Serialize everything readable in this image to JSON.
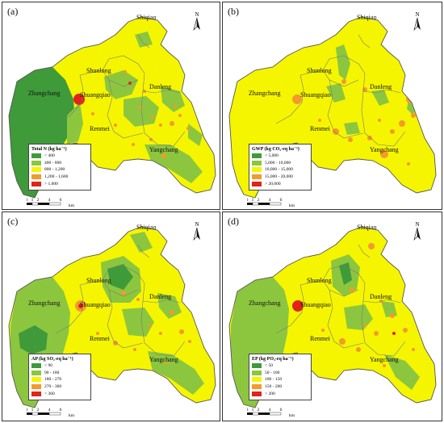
{
  "colors": {
    "darkgreen": "#3f9a3a",
    "lightgreen": "#8cc63f",
    "yellow": "#f5f500",
    "orange": "#f39a2c",
    "red": "#e2231a"
  },
  "places": [
    "Shiqiao",
    "Shunlong",
    "Zhangchang",
    "Shuangqiao",
    "Danleng",
    "Renmei",
    "Yangchang"
  ],
  "north_label": "N",
  "scale": {
    "ticks": [
      "0",
      "1",
      "2",
      "4",
      "6"
    ],
    "unit": "km"
  },
  "panels": [
    {
      "label": "(a)",
      "legend_title": "Total N (kg ha⁻¹)",
      "legend_items": [
        "< 400",
        "400 - 800",
        "800 - 1,200",
        "1,200 - 1,600",
        "> 1,600"
      ]
    },
    {
      "label": "(b)",
      "legend_title": "GWP (kg CO₂-eq ha⁻¹)",
      "legend_items": [
        "< 5,000",
        "5,000 - 10,000",
        "10,000 - 15,000",
        "15,000 - 20,000",
        "> 20,000"
      ]
    },
    {
      "label": "(c)",
      "legend_title": "AP (kg SO₂-eq ha⁻¹)",
      "legend_items": [
        "< 90",
        "90 - 180",
        "180 - 270",
        "270 - 360",
        "> 360"
      ]
    },
    {
      "label": "(d)",
      "legend_title": "EP (kg PO₄-eq ha⁻¹)",
      "legend_items": [
        "< 50",
        "50 - 100",
        "100 - 150",
        "150 - 200",
        "> 200"
      ]
    }
  ]
}
